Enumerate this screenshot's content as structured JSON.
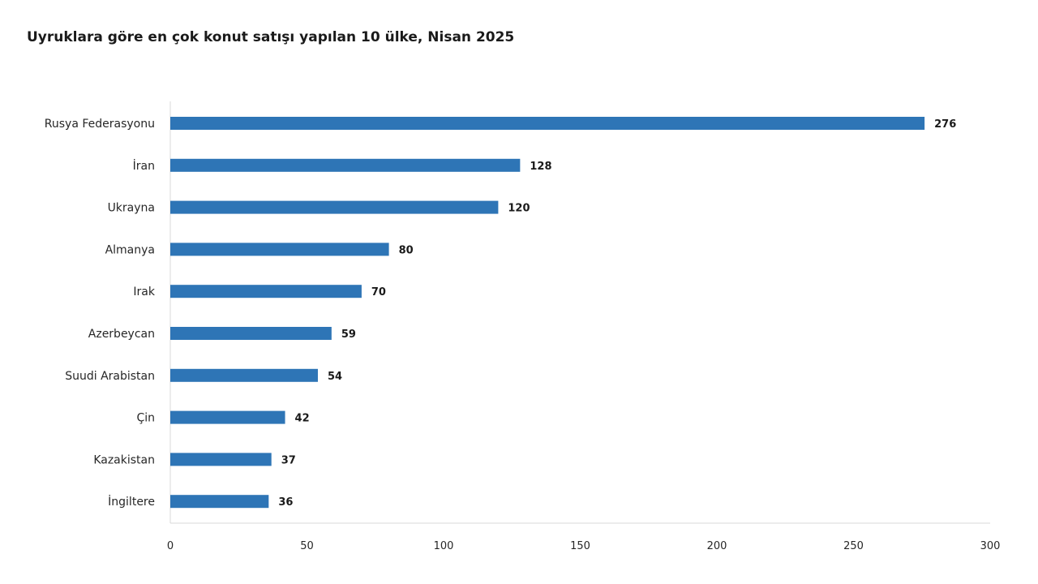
{
  "chart_data": {
    "type": "bar",
    "orientation": "horizontal",
    "title": "Uyruklara göre en çok konut satışı yapılan 10 ülke, Nisan 2025",
    "categories": [
      "Rusya Federasyonu",
      "İran",
      "Ukrayna",
      "Almanya",
      "Irak",
      "Azerbeycan",
      "Suudi Arabistan",
      "Çin",
      "Kazakistan",
      "İngiltere"
    ],
    "values": [
      276,
      128,
      120,
      80,
      70,
      59,
      54,
      42,
      37,
      36
    ],
    "xlim": [
      0,
      300
    ],
    "xticks": [
      0,
      50,
      100,
      150,
      200,
      250,
      300
    ],
    "xlabel": "",
    "ylabel": "",
    "grid": false,
    "bar_color": "#2e75b6"
  }
}
